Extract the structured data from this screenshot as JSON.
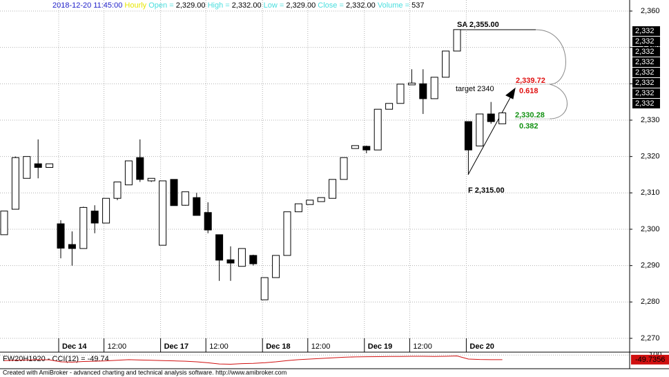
{
  "chart_data": {
    "type": "candlestick",
    "header": [
      {
        "text": "2018-12-20 11:45:00",
        "color": "#1c1cc8"
      },
      {
        "text": "Hourly",
        "color": "#e6e600"
      },
      {
        "text": "Open =",
        "color": "#48dede"
      },
      {
        "text": "2,329.00",
        "color": "#000000"
      },
      {
        "text": "High =",
        "color": "#48dede"
      },
      {
        "text": "2,332.00",
        "color": "#000000"
      },
      {
        "text": "Low =",
        "color": "#48dede"
      },
      {
        "text": "2,329.00",
        "color": "#000000"
      },
      {
        "text": "Close =",
        "color": "#48dede"
      },
      {
        "text": "2,332.00",
        "color": "#000000"
      },
      {
        "text": "Volume =",
        "color": "#48dede"
      },
      {
        "text": "537",
        "color": "#000000"
      }
    ],
    "categories": [
      null,
      null,
      null,
      null,
      null,
      "Dec 14",
      null,
      null,
      null,
      "12:00",
      null,
      null,
      null,
      null,
      "Dec 17",
      null,
      null,
      null,
      "12:00",
      null,
      null,
      null,
      null,
      "Dec 18",
      null,
      null,
      null,
      "12:00",
      null,
      null,
      null,
      null,
      "Dec 19",
      null,
      null,
      null,
      "12:00",
      null,
      null,
      null,
      null,
      "Dec 20",
      null,
      null,
      null
    ],
    "open": [
      2298.5,
      2305.5,
      2314,
      2318,
      2317,
      2301.5,
      2295.8,
      2294.7,
      2305,
      2301.7,
      2308.5,
      2312.2,
      2319.7,
      2313.3,
      2295.6,
      2313.7,
      2306.6,
      2308.7,
      2304.6,
      2298.5,
      2291.6,
      2289.8,
      2292.8,
      2280.6,
      2286.7,
      2292.8,
      2304.8,
      2306.8,
      2307.6,
      2308.5,
      2313.7,
      2322.2,
      2322.8,
      2321.8,
      2333,
      2334.6,
      2339.7,
      2340,
      2335.9,
      2341.8,
      2349,
      2329.6,
      2322.9,
      2331.7,
      2329
    ],
    "high": [
      2305,
      2320,
      2320,
      2324.7,
      2318,
      2302.5,
      2299.4,
      2306.2,
      2306.6,
      2308.5,
      2313,
      2318.8,
      2324.7,
      2314,
      2313.3,
      2313.7,
      2310.3,
      2310,
      2307.4,
      2298.5,
      2295.3,
      2294.7,
      2293,
      2286.7,
      2292.8,
      2304.8,
      2307,
      2308,
      2308.7,
      2313.7,
      2319.7,
      2323,
      2323,
      2333,
      2334.6,
      2339.9,
      2344,
      2344,
      2341.8,
      2349,
      2355,
      2329.6,
      2331.7,
      2335,
      2332
    ],
    "low": [
      2298.5,
      2305.5,
      2314,
      2314,
      2317,
      2292,
      2290,
      2294.7,
      2298.9,
      2301.7,
      2308,
      2312.2,
      2313,
      2313,
      2295.6,
      2306.5,
      2306.5,
      2303.8,
      2298.9,
      2285.8,
      2285.8,
      2289.8,
      2290,
      2280.6,
      2286.7,
      2292.8,
      2304.8,
      2306.8,
      2307.6,
      2308.5,
      2313.7,
      2322.2,
      2320.9,
      2321.8,
      2333,
      2334.6,
      2339.7,
      2331.7,
      2335.9,
      2341.8,
      2349,
      2315,
      2322.9,
      2329,
      2329
    ],
    "close": [
      2305,
      2319.7,
      2320,
      2317,
      2318,
      2294.8,
      2294.7,
      2306,
      2301.7,
      2308.5,
      2313,
      2318.8,
      2313.7,
      2314,
      2313.3,
      2306.5,
      2310.3,
      2303.8,
      2299.8,
      2291.5,
      2290.7,
      2294.7,
      2290.5,
      2286.7,
      2292.8,
      2304.8,
      2307,
      2308,
      2308.7,
      2313.7,
      2319.7,
      2323,
      2321.8,
      2333,
      2334.6,
      2339.9,
      2340.2,
      2335.9,
      2341.8,
      2349,
      2354.9,
      2321.8,
      2331.7,
      2329.6,
      2332
    ],
    "up_color": "#ffffff",
    "down_color": "#000000",
    "ylim": [
      2270,
      2360
    ],
    "yticks": [
      {
        "value": 2270,
        "label": "2,270"
      },
      {
        "value": 2280,
        "label": "2,280"
      },
      {
        "value": 2290,
        "label": "2,290"
      },
      {
        "value": 2300,
        "label": "2,300"
      },
      {
        "value": 2310,
        "label": "2,310"
      },
      {
        "value": 2320,
        "label": "2,320"
      },
      {
        "value": 2330,
        "label": "2,330"
      },
      {
        "value": 2340,
        "label": "2,340"
      },
      {
        "value": 2350,
        "label": "2,350"
      },
      {
        "value": 2360,
        "label": "2,360"
      }
    ],
    "grid": true,
    "price_tags": [
      "2,332",
      "2,332",
      "2,332",
      "2,332",
      "2,332",
      "2,332",
      "2,332",
      "2,332"
    ],
    "annotations": {
      "sa": "SA  2,355.00",
      "target": "target 2340",
      "fib1_price": "2,339.72",
      "fib1_ratio": "0.618",
      "fib2_price": "2,330.28",
      "fib2_ratio": "0.382",
      "f": "F  2,315.00"
    },
    "indicator": {
      "title": "FW20H1920 - CCI(12) = -49.74",
      "color": "#d01010",
      "tag": "-49.7356",
      "values": [
        -80,
        -70,
        -60,
        -50,
        -55,
        -120,
        -130,
        -110,
        -100,
        -90,
        -70,
        -50,
        -60,
        -70,
        -80,
        -90,
        -100,
        -120,
        -150,
        -190,
        -200,
        -180,
        -170,
        -150,
        -120,
        -80,
        -50,
        -30,
        -10,
        10,
        30,
        40,
        45,
        50,
        55,
        55,
        60,
        60,
        55,
        60,
        70,
        -30,
        -45,
        -50,
        -49.7356
      ],
      "ylim": [
        -300,
        150
      ],
      "yticks": [
        100
      ]
    },
    "footer": "Created with AmiBroker - advanced charting and technical analysis software. http://www.amibroker.com"
  }
}
